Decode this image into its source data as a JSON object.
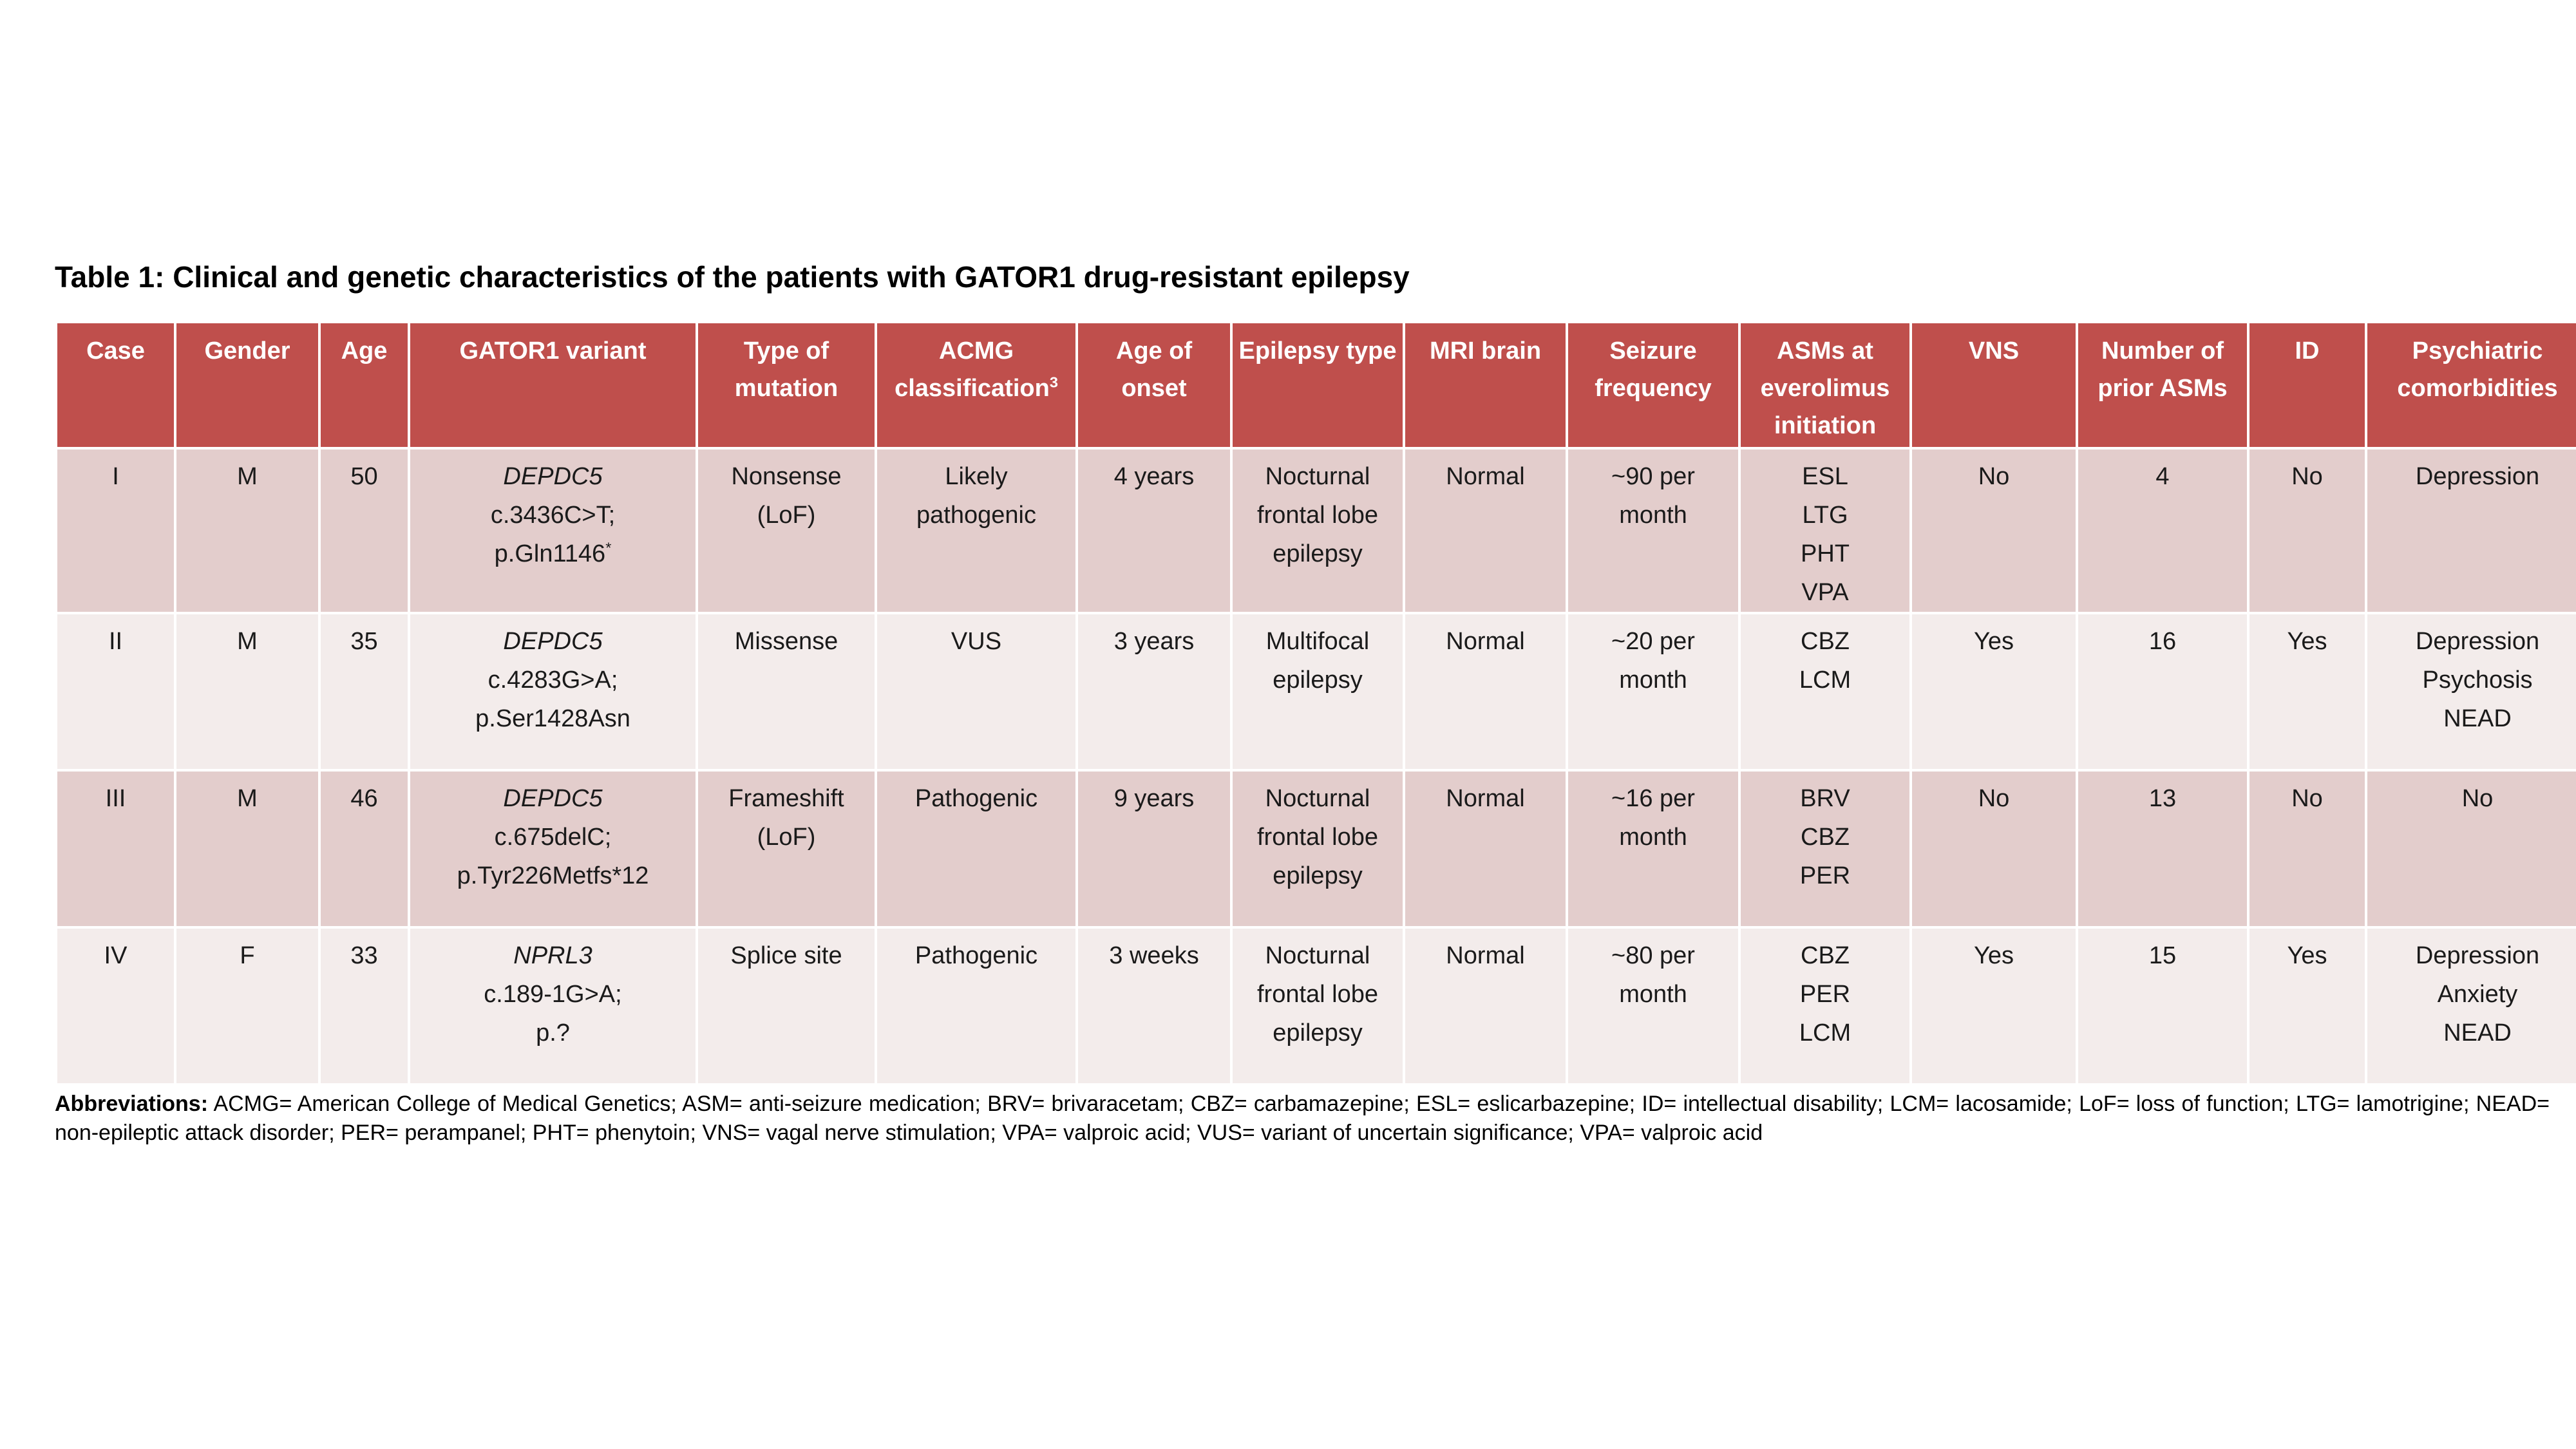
{
  "page": {
    "title": "Table 1: Clinical and genetic characteristics of the patients with GATOR1 drug-resistant epilepsy"
  },
  "table": {
    "columns": [
      {
        "label": "Case"
      },
      {
        "label": "Gender"
      },
      {
        "label": "Age"
      },
      {
        "label": "GATOR1 variant"
      },
      {
        "label": "Type of mutation"
      },
      {
        "label": "ACMG classification",
        "sup": "3"
      },
      {
        "label": "Age of onset"
      },
      {
        "label": "Epilepsy type"
      },
      {
        "label": "MRI brain"
      },
      {
        "label": "Seizure frequency"
      },
      {
        "label": "ASMs at everolimus initiation"
      },
      {
        "label": "VNS"
      },
      {
        "label": "Number of prior ASMs"
      },
      {
        "label": "ID"
      },
      {
        "label": "Psychiatric comorbidities"
      }
    ],
    "rows": [
      {
        "case": "I",
        "gender": "M",
        "age": "50",
        "variant": {
          "gene": "DEPDC5",
          "cdna": "c.3436C>T;",
          "protein": "p.Gln1146",
          "protein_sup": "*"
        },
        "mutation": [
          "Nonsense",
          "(LoF)"
        ],
        "acmg": [
          "Likely",
          "pathogenic"
        ],
        "onset": "4 years",
        "epilepsy": [
          "Nocturnal",
          "frontal lobe",
          "epilepsy"
        ],
        "mri": "Normal",
        "seizure": [
          "~90 per",
          "month"
        ],
        "asms": [
          "ESL",
          "LTG",
          "PHT",
          "VPA"
        ],
        "vns": "No",
        "prior_asms": "4",
        "id": "No",
        "psychiatric": [
          "Depression"
        ]
      },
      {
        "case": "II",
        "gender": "M",
        "age": "35",
        "variant": {
          "gene": "DEPDC5",
          "cdna": "c.4283G>A;",
          "protein": "p.Ser1428Asn",
          "protein_sup": ""
        },
        "mutation": [
          "Missense"
        ],
        "acmg": [
          "VUS"
        ],
        "onset": "3 years",
        "epilepsy": [
          "Multifocal",
          "epilepsy"
        ],
        "mri": "Normal",
        "seizure": [
          "~20 per",
          "month"
        ],
        "asms": [
          "CBZ",
          "LCM"
        ],
        "vns": "Yes",
        "prior_asms": "16",
        "id": "Yes",
        "psychiatric": [
          "Depression",
          "Psychosis",
          "NEAD"
        ]
      },
      {
        "case": "III",
        "gender": "M",
        "age": "46",
        "variant": {
          "gene": "DEPDC5",
          "cdna": "c.675delC;",
          "protein": "p.Tyr226Metfs*12",
          "protein_sup": ""
        },
        "mutation": [
          "Frameshift",
          "(LoF)"
        ],
        "acmg": [
          "Pathogenic"
        ],
        "onset": "9 years",
        "epilepsy": [
          "Nocturnal",
          "frontal lobe",
          "epilepsy"
        ],
        "mri": "Normal",
        "seizure": [
          "~16 per",
          "month"
        ],
        "asms": [
          "BRV",
          "CBZ",
          "PER"
        ],
        "vns": "No",
        "prior_asms": "13",
        "id": "No",
        "psychiatric": [
          "No"
        ]
      },
      {
        "case": "IV",
        "gender": "F",
        "age": "33",
        "variant": {
          "gene": "NPRL3",
          "cdna": "c.189-1G>A;",
          "protein": "p.?",
          "protein_sup": ""
        },
        "mutation": [
          "Splice site"
        ],
        "acmg": [
          "Pathogenic"
        ],
        "onset": "3 weeks",
        "epilepsy": [
          "Nocturnal",
          "frontal lobe",
          "epilepsy"
        ],
        "mri": "Normal",
        "seizure": [
          "~80 per",
          "month"
        ],
        "asms": [
          "CBZ",
          "PER",
          "LCM"
        ],
        "vns": "Yes",
        "prior_asms": "15",
        "id": "Yes",
        "psychiatric": [
          "Depression",
          "Anxiety",
          "NEAD"
        ]
      }
    ]
  },
  "footer": {
    "abbreviations_label": "Abbreviations:",
    "abbreviations_text": "ACMG= American College of Medical Genetics; ASM= anti-seizure medication; BRV= brivaracetam; CBZ= carbamazepine; ESL= eslicarbazepine; ID= intellectual disability; LCM= lacosamide; LoF= loss of function; LTG= lamotrigine; NEAD= non-epileptic attack disorder; PER= perampanel; PHT= phenytoin; VNS= vagal nerve stimulation; VPA= valproic acid; VUS= variant of uncertain significance; VPA= valproic acid"
  },
  "colors": {
    "header_bg": "#BF4F4C",
    "band_dark": "#E3CDCC",
    "band_light": "#F3ECEB",
    "header_text": "#FFFFFF",
    "body_text": "#1A1A1A"
  }
}
